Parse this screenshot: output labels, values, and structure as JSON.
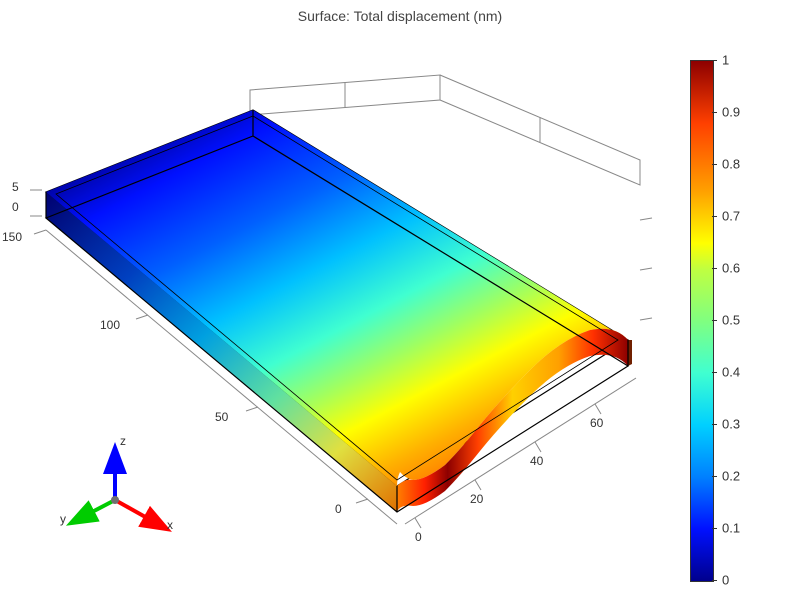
{
  "title": "Surface: Total displacement (nm)",
  "chart": {
    "type": "3d-surface",
    "background_color": "#ffffff",
    "title_fontsize": 14,
    "title_color": "#444444",
    "tick_fontsize": 12,
    "tick_color": "#333333",
    "x_axis": {
      "label": "x",
      "ticks": [
        0,
        50,
        100,
        150
      ],
      "lim": [
        -10,
        160
      ],
      "color": "#ff0000"
    },
    "y_axis": {
      "label": "y",
      "ticks": [
        0,
        20,
        40,
        60
      ],
      "lim": [
        -5,
        70
      ],
      "color": "#00cc00"
    },
    "z_axis": {
      "label": "z",
      "ticks": [
        0,
        5
      ],
      "lim": [
        0,
        5
      ],
      "color": "#0000ff"
    },
    "colormap_stops": [
      {
        "t": 0.0,
        "color": "#00008d"
      },
      {
        "t": 0.1,
        "color": "#0010ff"
      },
      {
        "t": 0.2,
        "color": "#0080ff"
      },
      {
        "t": 0.3,
        "color": "#00d0ff"
      },
      {
        "t": 0.4,
        "color": "#40ffd0"
      },
      {
        "t": 0.5,
        "color": "#80ff80"
      },
      {
        "t": 0.6,
        "color": "#c0ff40"
      },
      {
        "t": 0.65,
        "color": "#ffff00"
      },
      {
        "t": 0.75,
        "color": "#ffa000"
      },
      {
        "t": 0.88,
        "color": "#ff4000"
      },
      {
        "t": 1.0,
        "color": "#8d0000"
      }
    ],
    "colorbar": {
      "ticks": [
        0,
        0.1,
        0.2,
        0.3,
        0.4,
        0.5,
        0.6,
        0.7,
        0.8,
        0.9,
        1
      ],
      "lim": [
        0,
        1
      ]
    },
    "surface_description": "Rectangular thin plate 150×65×5, fixed at x=150 end (dark blue, ~0 displacement), increasing displacement toward x=0 end with slight curl; max displacement ~1.0 at front-right corner (x≈0, y≈0 and y≈65).",
    "wireframe_color": "#000000",
    "box_color": "#888888"
  },
  "axis_triad": {
    "x": {
      "label": "x",
      "color": "#ff0000"
    },
    "y": {
      "label": "y",
      "color": "#00cc00"
    },
    "z": {
      "label": "z",
      "color": "#0000ff"
    }
  },
  "tick_labels_z": {
    "t0": "0",
    "t5": "5"
  },
  "tick_labels_x": {
    "t0": "0",
    "t50": "50",
    "t100": "100",
    "t150": "150"
  },
  "tick_labels_y": {
    "t0": "0",
    "t20": "20",
    "t40": "40",
    "t60": "60"
  }
}
